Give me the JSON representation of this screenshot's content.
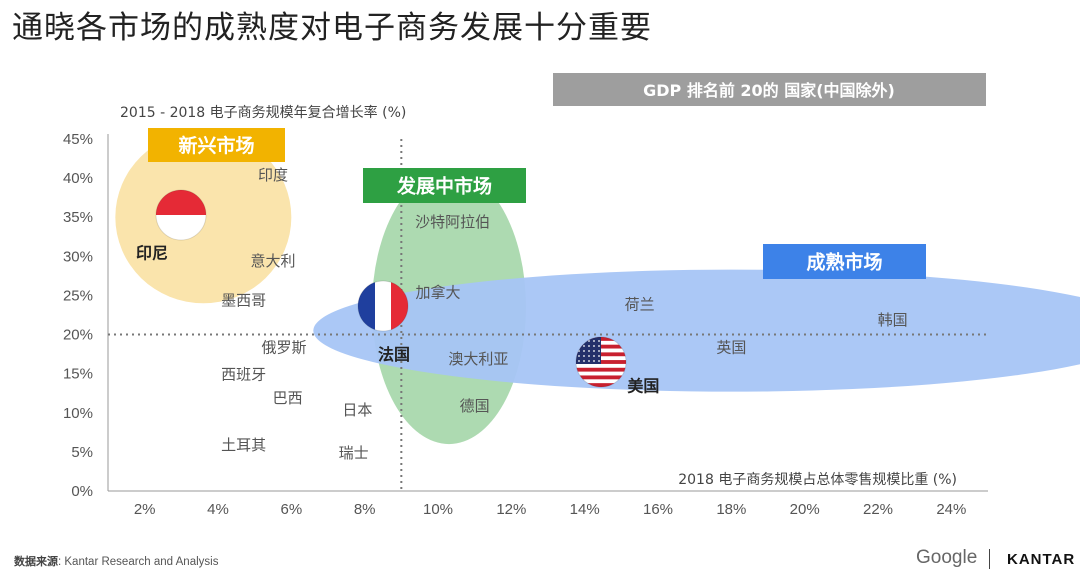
{
  "page": {
    "title": "通晓各市场的成熟度对电子商务发展十分重要",
    "source_label": "数据来源",
    "source_text": ": Kantar Research and Analysis",
    "brand_google": "Google",
    "brand_kantar": "KANTAR"
  },
  "chart_data": {
    "type": "scatter",
    "title": "GDP 排名前 20的 国家(中国除外)",
    "ylabel": "2015 - 2018 电子商务规模年复合增长率 (%)",
    "xlabel": "2018 电子商务规模占总体零售规模比重 (%)",
    "xlim": [
      1,
      25
    ],
    "ylim": [
      0,
      45
    ],
    "x_ticks": [
      2,
      4,
      6,
      8,
      10,
      12,
      14,
      16,
      18,
      20,
      22,
      24
    ],
    "x_tick_labels": [
      "2%",
      "4%",
      "6%",
      "8%",
      "10%",
      "12%",
      "14%",
      "16%",
      "18%",
      "20%",
      "22%",
      "24%"
    ],
    "y_ticks": [
      0,
      5,
      10,
      15,
      20,
      25,
      30,
      35,
      40,
      45
    ],
    "y_tick_labels": [
      "0%",
      "5%",
      "10%",
      "15%",
      "20%",
      "25%",
      "30%",
      "35%",
      "40%",
      "45%"
    ],
    "reference_lines": {
      "x": 9,
      "y": 20
    },
    "groups": [
      {
        "name": "新兴市场",
        "color": "#fae3a8",
        "label_color": "#f2b300",
        "center": [
          3.6,
          35
        ],
        "radius_x": 2.4,
        "radius_y": 11
      },
      {
        "name": "发展中市场",
        "color": "#a9d8ad",
        "label_color": "#2ea043",
        "center": [
          10.3,
          23.5
        ],
        "radius_x": 2.1,
        "radius_y": 17.5
      },
      {
        "name": "成熟市场",
        "color": "#a7c5f5",
        "label_color": "#3d82e8",
        "center": [
          18,
          20.5
        ],
        "radius_x": 11.4,
        "radius_y": 7.8
      }
    ],
    "points": [
      {
        "name": "印度",
        "x": 5.5,
        "y": 40.5,
        "bold": false
      },
      {
        "name": "印尼",
        "x": 2.2,
        "y": 30.5,
        "bold": true,
        "flag": "indonesia"
      },
      {
        "name": "意大利",
        "x": 5.5,
        "y": 29.5,
        "bold": false
      },
      {
        "name": "墨西哥",
        "x": 4.7,
        "y": 24.5,
        "bold": false
      },
      {
        "name": "沙特阿拉伯",
        "x": 10.4,
        "y": 34.5,
        "bold": false
      },
      {
        "name": "加拿大",
        "x": 10,
        "y": 25.5,
        "bold": false
      },
      {
        "name": "法国",
        "x": 8.8,
        "y": 17.5,
        "bold": true,
        "flag": "france"
      },
      {
        "name": "俄罗斯",
        "x": 5.8,
        "y": 18.5,
        "bold": false
      },
      {
        "name": "澳大利亚",
        "x": 11.1,
        "y": 17,
        "bold": false
      },
      {
        "name": "西班牙",
        "x": 4.7,
        "y": 15,
        "bold": false
      },
      {
        "name": "巴西",
        "x": 5.9,
        "y": 12,
        "bold": false
      },
      {
        "name": "日本",
        "x": 7.8,
        "y": 10.5,
        "bold": false
      },
      {
        "name": "德国",
        "x": 11,
        "y": 11,
        "bold": false
      },
      {
        "name": "土耳其",
        "x": 4.7,
        "y": 6,
        "bold": false
      },
      {
        "name": "瑞士",
        "x": 7.7,
        "y": 5,
        "bold": false
      },
      {
        "name": "荷兰",
        "x": 15.5,
        "y": 24,
        "bold": false
      },
      {
        "name": "韩国",
        "x": 22.4,
        "y": 22,
        "bold": false
      },
      {
        "name": "英国",
        "x": 18,
        "y": 18.5,
        "bold": false
      },
      {
        "name": "美国",
        "x": 15.6,
        "y": 13.5,
        "bold": true,
        "flag": "usa"
      }
    ]
  }
}
